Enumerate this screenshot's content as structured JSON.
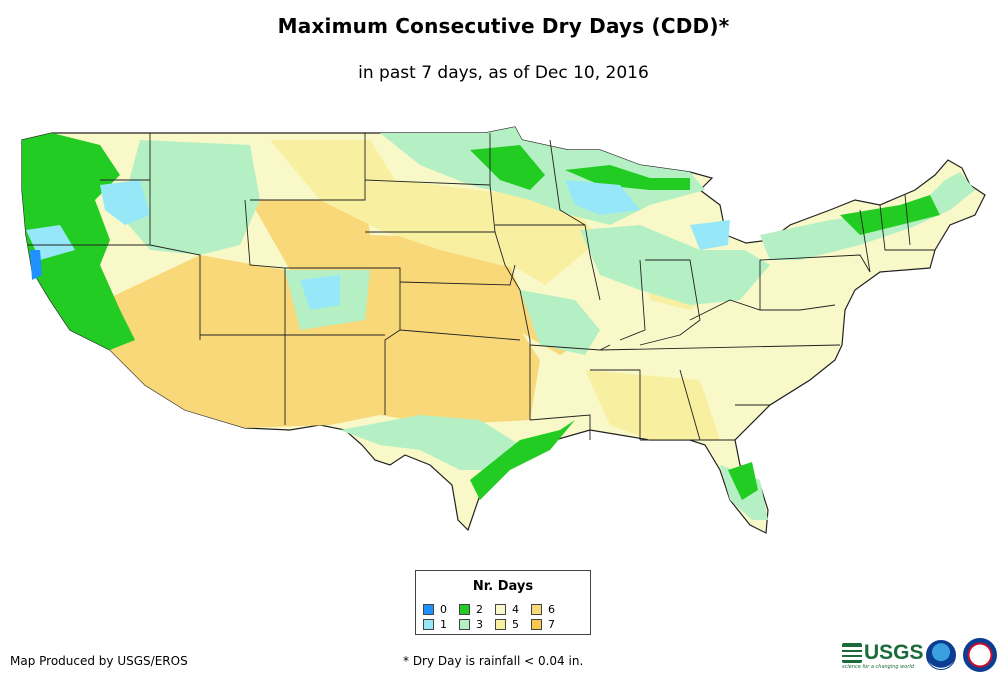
{
  "title": "Maximum Consecutive Dry Days (CDD)*",
  "subtitle": "in past 7 days, as of Dec 10, 2016",
  "legend": {
    "title": "Nr. Days",
    "items": [
      {
        "label": "0",
        "color": "#1e90ff"
      },
      {
        "label": "1",
        "color": "#96e8f8"
      },
      {
        "label": "2",
        "color": "#22cc22"
      },
      {
        "label": "3",
        "color": "#b4f0c4"
      },
      {
        "label": "4",
        "color": "#f8f8c8"
      },
      {
        "label": "5",
        "color": "#f8f0a0"
      },
      {
        "label": "6",
        "color": "#f8d878"
      },
      {
        "label": "7",
        "color": "#f8c850"
      }
    ]
  },
  "credit": "Map Produced by USGS/EROS",
  "footnote": "* Dry Day is rainfall < 0.04 in.",
  "logos": {
    "usgs": "USGS",
    "usgs_tagline": "science for a changing world"
  },
  "colors": {
    "state_border": "#222222"
  }
}
